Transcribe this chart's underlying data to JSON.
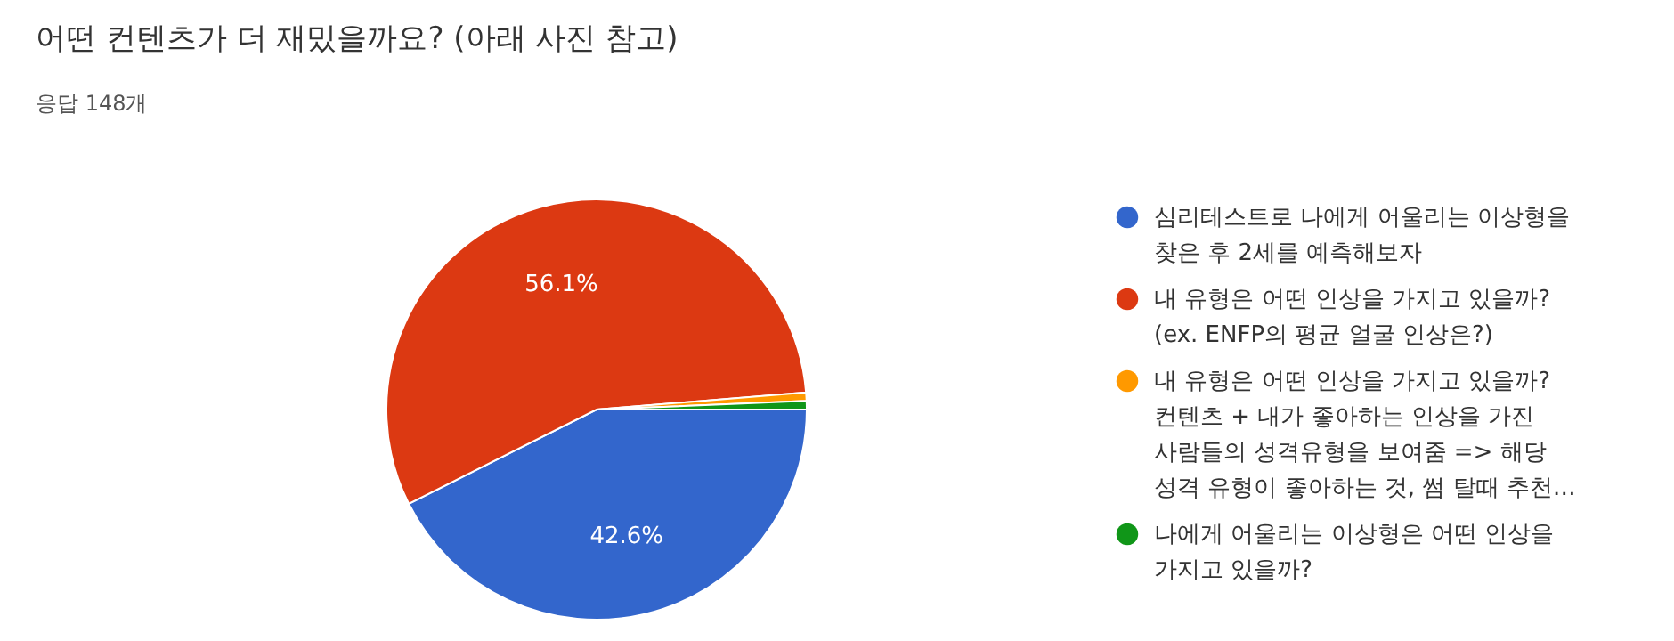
{
  "chart_data": {
    "type": "pie",
    "title": "어떤 컨텐츠가 더 재밌을까요? (아래 사진 참고)",
    "subtitle": "응답 148개",
    "categories": [
      "심리테스트로 나에게 어울리는 이상형을 찾은 후 2세를 예측해보자",
      "내 유형은 어떤 인상을 가지고 있을까? (ex. ENFP의 평균 얼굴 인상은?)",
      "내 유형은 어떤 인상을 가지고 있을까? 컨텐츠 + 내가 좋아하는 인상을 가진 사람들의 성격유형을 보여줌 => 해당 성격 유형이 좋아하는 것, 썸 탈때 추천…",
      "나에게 어울리는 이상형은 어떤 인상을 가지고 있을까?"
    ],
    "values": [
      42.6,
      56.1,
      0.65,
      0.65
    ],
    "colors": [
      "#3366cc",
      "#dc3912",
      "#ff9900",
      "#109618"
    ],
    "value_labels": [
      "42.6%",
      "56.1%",
      null,
      null
    ],
    "legend": "right"
  }
}
